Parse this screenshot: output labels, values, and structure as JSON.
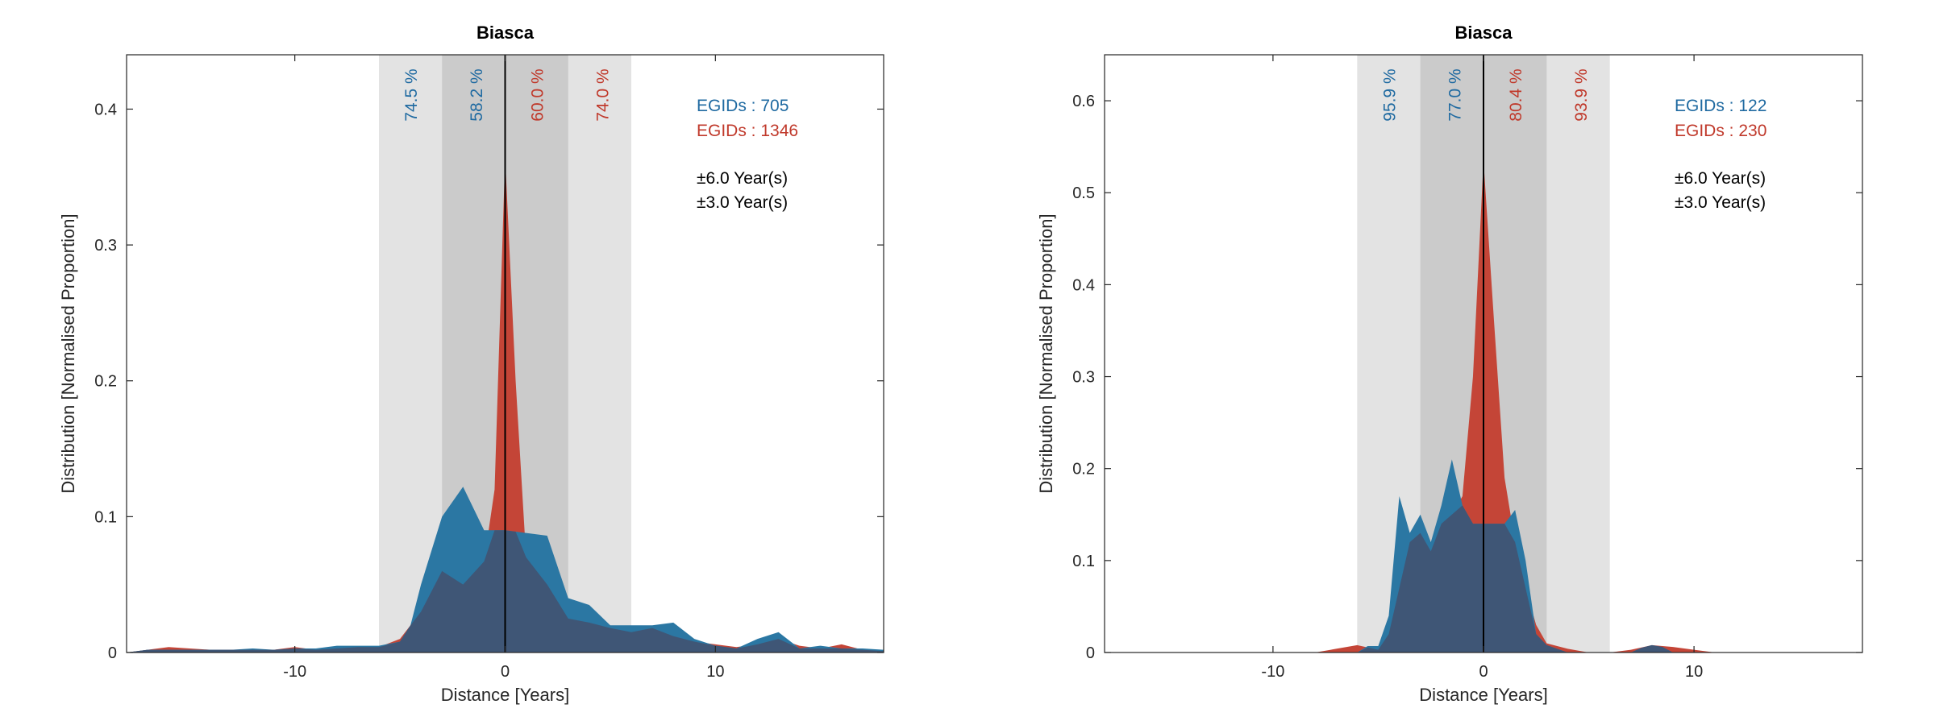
{
  "colors": {
    "blue": "#2b77a3",
    "red": "#c44537",
    "overlap": "#3f5676",
    "band_outer": "#e3e3e3",
    "band_inner": "#cbcbcb",
    "blue_text": "#1f6aa1",
    "red_text": "#c0392b"
  },
  "chart_data": [
    {
      "type": "area",
      "title": "Biasca",
      "xlabel": "Distance [Years]",
      "ylabel": "Distribution [Normalised Proportion]",
      "xlim": [
        -18,
        18
      ],
      "ylim": [
        0,
        0.44
      ],
      "xticks": [
        -10,
        0,
        10
      ],
      "xtick_labels": [
        "-10",
        "0",
        "10"
      ],
      "yticks": [
        0,
        0.1,
        0.2,
        0.3,
        0.4
      ],
      "ytick_labels": [
        "0",
        "0.1",
        "0.2",
        "0.3",
        "0.4"
      ],
      "grid": false,
      "legend": [
        {
          "text": "EGIDs : 705",
          "color": "blue"
        },
        {
          "text": "EGIDs : 1346",
          "color": "red"
        }
      ],
      "windows": [
        "±6.0 Year(s)",
        "±3.0 Year(s)"
      ],
      "band_outer": [
        -6,
        6
      ],
      "band_inner": [
        -3,
        3
      ],
      "percent_labels": [
        {
          "x": -4.5,
          "text": "74.5 %",
          "color": "blue"
        },
        {
          "x": -1.4,
          "text": "58.2 %",
          "color": "blue"
        },
        {
          "x": 1.5,
          "text": "60.0 %",
          "color": "red"
        },
        {
          "x": 4.6,
          "text": "74.0 %",
          "color": "red"
        }
      ],
      "series": [
        {
          "name": "EGIDs : 705",
          "color": "blue",
          "x": [
            -18,
            -17,
            -16,
            -15,
            -14,
            -13,
            -12,
            -11,
            -10,
            -9,
            -8,
            -7,
            -6,
            -5,
            -4.5,
            -4,
            -3,
            -2,
            -1,
            0,
            1,
            2,
            3,
            4,
            5,
            6,
            7,
            8,
            9,
            10,
            11,
            12,
            13,
            14,
            15,
            16,
            17,
            18
          ],
          "y": [
            0,
            0.002,
            0.002,
            0.002,
            0.002,
            0.002,
            0.003,
            0.002,
            0.003,
            0.003,
            0.005,
            0.005,
            0.005,
            0.008,
            0.02,
            0.05,
            0.1,
            0.122,
            0.09,
            0.09,
            0.088,
            0.086,
            0.04,
            0.035,
            0.02,
            0.02,
            0.02,
            0.022,
            0.01,
            0.005,
            0.003,
            0.01,
            0.015,
            0.003,
            0.005,
            0.003,
            0.003,
            0.002
          ]
        },
        {
          "name": "EGIDs : 1346",
          "color": "red",
          "x": [
            -18,
            -17,
            -16,
            -15,
            -14,
            -13,
            -12,
            -11,
            -10,
            -9,
            -8,
            -7,
            -6,
            -5,
            -4,
            -3,
            -2,
            -1,
            -0.5,
            0,
            0.5,
            1,
            2,
            3,
            4,
            5,
            6,
            7,
            8,
            9,
            10,
            11,
            12,
            13,
            14,
            15,
            16,
            17,
            18
          ],
          "y": [
            0,
            0.002,
            0.004,
            0.003,
            0.002,
            0.002,
            0.002,
            0.002,
            0.004,
            0.002,
            0.003,
            0.004,
            0.004,
            0.01,
            0.03,
            0.06,
            0.05,
            0.067,
            0.12,
            0.365,
            0.2,
            0.07,
            0.05,
            0.025,
            0.022,
            0.018,
            0.015,
            0.018,
            0.012,
            0.008,
            0.006,
            0.004,
            0.006,
            0.01,
            0.005,
            0.003,
            0.006,
            0.002,
            0.001
          ]
        }
      ]
    },
    {
      "type": "area",
      "title": "Biasca",
      "xlabel": "Distance [Years]",
      "ylabel": "Distribution [Normalised Proportion]",
      "xlim": [
        -18,
        18
      ],
      "ylim": [
        0,
        0.65
      ],
      "xticks": [
        -10,
        0,
        10
      ],
      "xtick_labels": [
        "-10",
        "0",
        "10"
      ],
      "yticks": [
        0,
        0.1,
        0.2,
        0.3,
        0.4,
        0.5,
        0.6
      ],
      "ytick_labels": [
        "0",
        "0.1",
        "0.2",
        "0.3",
        "0.4",
        "0.5",
        "0.6"
      ],
      "grid": false,
      "legend": [
        {
          "text": "EGIDs : 122",
          "color": "blue"
        },
        {
          "text": "EGIDs : 230",
          "color": "red"
        }
      ],
      "windows": [
        "±6.0 Year(s)",
        "±3.0 Year(s)"
      ],
      "band_outer": [
        -6,
        6
      ],
      "band_inner": [
        -3,
        3
      ],
      "percent_labels": [
        {
          "x": -4.5,
          "text": "95.9 %",
          "color": "blue"
        },
        {
          "x": -1.4,
          "text": "77.0 %",
          "color": "blue"
        },
        {
          "x": 1.5,
          "text": "80.4 %",
          "color": "red"
        },
        {
          "x": 4.6,
          "text": "93.9 %",
          "color": "red"
        }
      ],
      "series": [
        {
          "name": "EGIDs : 122",
          "color": "blue",
          "x": [
            -18,
            -6,
            -5.5,
            -5,
            -4.5,
            -4,
            -3.5,
            -3,
            -2.5,
            -2,
            -1.5,
            -1,
            -0.5,
            0,
            0.5,
            1,
            1.5,
            2,
            2.5,
            3,
            4,
            5,
            6,
            7,
            7.5,
            8,
            8.5,
            9,
            10,
            18
          ],
          "y": [
            0,
            0,
            0.007,
            0.007,
            0.04,
            0.17,
            0.13,
            0.15,
            0.12,
            0.16,
            0.21,
            0.16,
            0.14,
            0.14,
            0.14,
            0.14,
            0.155,
            0.1,
            0.02,
            0.008,
            0,
            0,
            0,
            0,
            0.005,
            0.008,
            0.006,
            0,
            0,
            0
          ]
        },
        {
          "name": "EGIDs : 230",
          "color": "red",
          "x": [
            -18,
            -8,
            -7,
            -6,
            -5,
            -4.5,
            -4,
            -3.5,
            -3,
            -2.5,
            -2,
            -1.5,
            -1,
            -0.5,
            0,
            0.5,
            1,
            1.5,
            2,
            2.5,
            3,
            4,
            5,
            6,
            7,
            8,
            9,
            10,
            11,
            18
          ],
          "y": [
            0,
            0,
            0.004,
            0.008,
            0.003,
            0.02,
            0.07,
            0.12,
            0.13,
            0.11,
            0.14,
            0.15,
            0.17,
            0.3,
            0.535,
            0.36,
            0.19,
            0.12,
            0.07,
            0.03,
            0.01,
            0.004,
            0,
            0,
            0.003,
            0.008,
            0.006,
            0.003,
            0,
            0
          ]
        }
      ]
    }
  ]
}
